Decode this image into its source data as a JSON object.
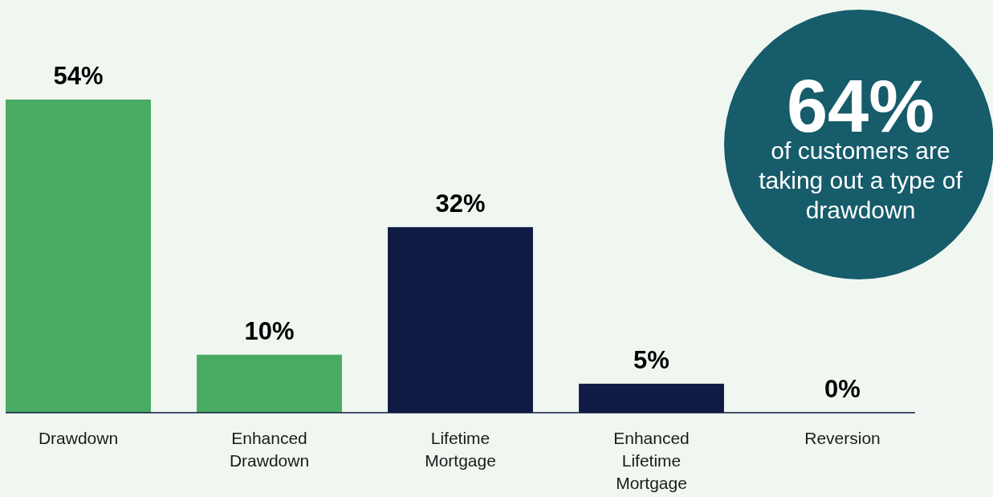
{
  "chart_data": {
    "type": "bar",
    "categories": [
      "Drawdown",
      "Enhanced Drawdown",
      "Lifetime Mortgage",
      "Enhanced Lifetime Mortgage",
      "Reversion"
    ],
    "values": [
      54,
      10,
      32,
      5,
      0
    ],
    "colors": [
      "#4aab62",
      "#4aab62",
      "#0f1b45",
      "#0f1b45",
      "#0f1b45"
    ],
    "value_labels": [
      "54%",
      "10%",
      "32%",
      "5%",
      "0%"
    ],
    "annotations": [
      "64%",
      "of customers are taking out a type of drawdown"
    ]
  }
}
